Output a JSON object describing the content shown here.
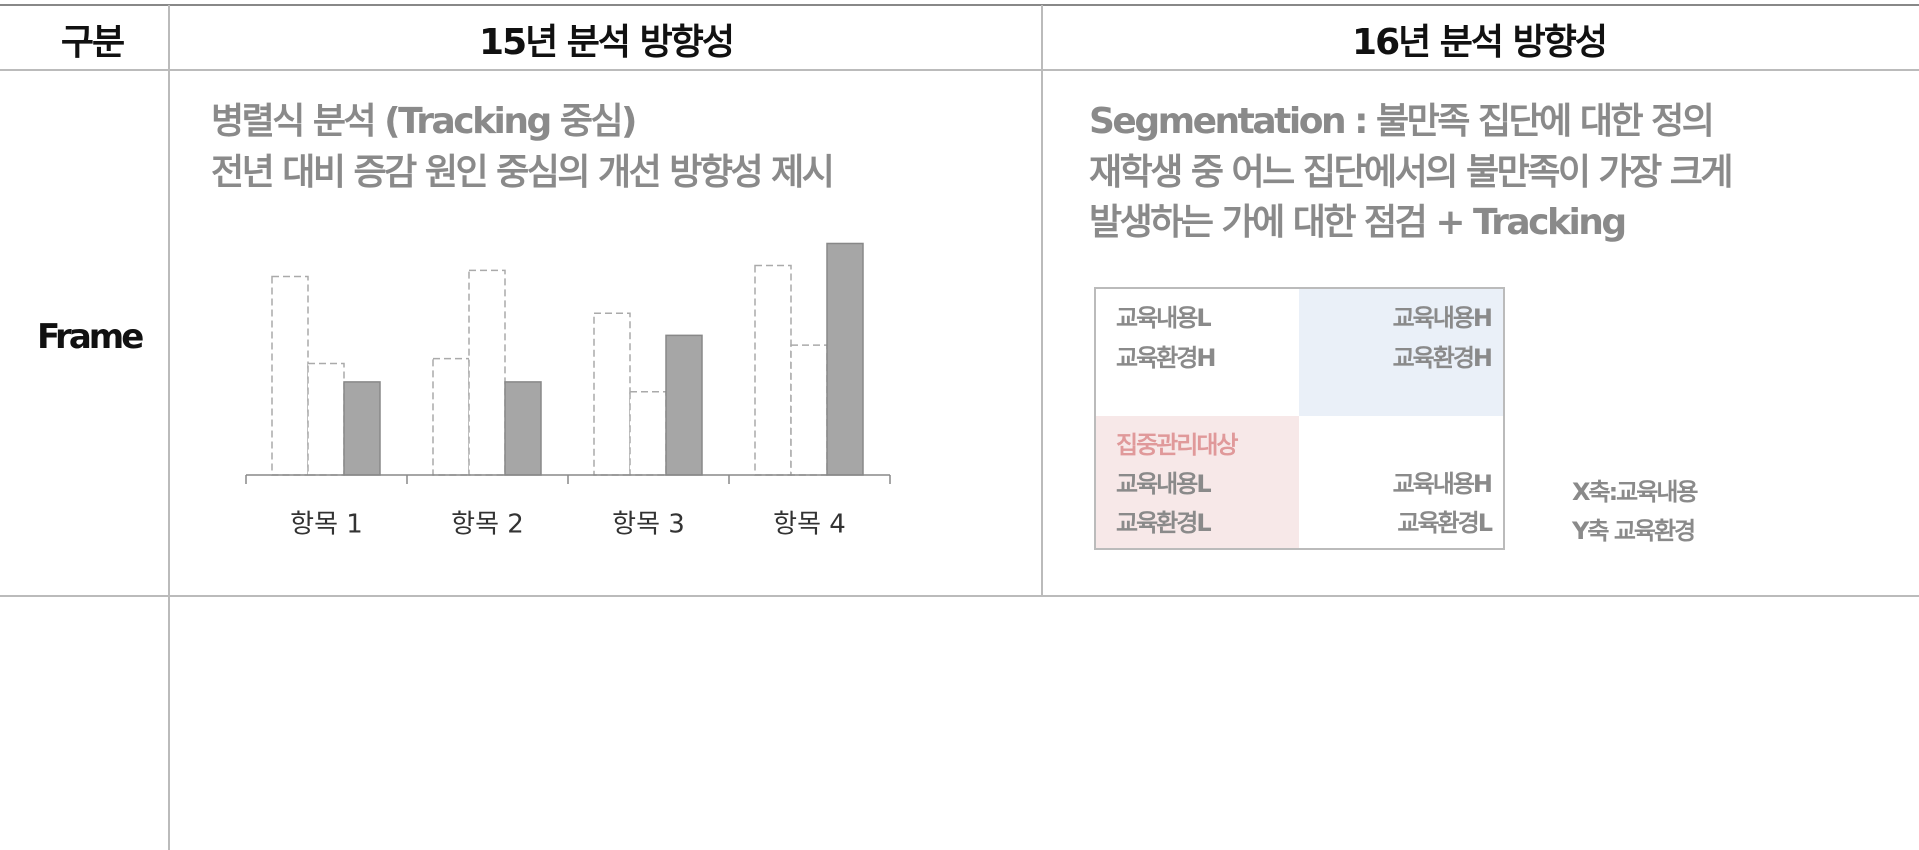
{
  "table": {
    "header": [
      "구분",
      "15년 분석 방향성",
      "16년 분석 방향성"
    ],
    "row_label": "Frame",
    "left_text": [
      "병렬식 분석 (Tracking 중심)",
      "전년 대비 증감 원인 중심의 개선 방향성 제시"
    ],
    "right_text": [
      "Segmentation : 불만족 집단에 대한 정의",
      "재학생 중 어느 집단에서의 불만족이 가장 크게",
      "발생하는 가에 대한 점검 + Tracking"
    ],
    "matrix": {
      "top_left": [
        "교육내용L",
        "교육환경H"
      ],
      "top_right": [
        "교육내용H",
        "교육환경H"
      ],
      "bottom_left_title": "집중관리대상",
      "bottom_left": [
        "교육내용L",
        "교육환경L"
      ],
      "bottom_right": [
        "교육내용H",
        "교육환경L"
      ]
    },
    "axis_note": [
      "X축:교육내용",
      "Y축 교육환경"
    ]
  },
  "chart_data": {
    "type": "bar",
    "categories": [
      "항목 1",
      "항목 2",
      "항목 3",
      "항목 4"
    ],
    "series": [
      {
        "color": "#aaaaaa",
        "style": "dashed",
        "values": [
          162,
          95,
          132,
          171
        ]
      },
      {
        "color": "#aaaaaa",
        "style": "dashed",
        "values": [
          91,
          167,
          68,
          106
        ]
      },
      {
        "color": "#a6a6a6",
        "style": "solid",
        "values": [
          76,
          76,
          114,
          189
        ]
      }
    ],
    "ylim": [
      0,
      200
    ]
  }
}
